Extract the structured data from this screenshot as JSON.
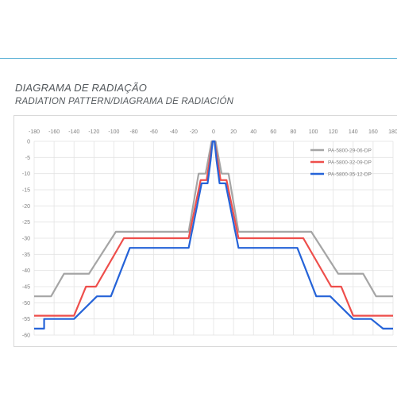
{
  "header": {
    "title": "DIAGRAMA DE RADIAÇÃO",
    "subtitle": "RADIATION PATTERN/DIAGRAMA DE RADIACIÓN"
  },
  "chart_data": {
    "type": "line",
    "title": "DIAGRAMA DE RADIAÇÃO",
    "xlabel": "",
    "ylabel": "",
    "xlim": [
      -180,
      180
    ],
    "ylim": [
      -60,
      0
    ],
    "xticks": [
      -180,
      -160,
      -140,
      -120,
      -100,
      -80,
      -60,
      -40,
      -20,
      0,
      20,
      40,
      60,
      80,
      100,
      120,
      140,
      160,
      180
    ],
    "yticks": [
      0,
      -5,
      -10,
      -15,
      -20,
      -25,
      -30,
      -35,
      -40,
      -45,
      -50,
      -55,
      -60
    ],
    "grid": true,
    "legend_position": "top-right",
    "series": [
      {
        "name": "PA-5800-29-06-DP",
        "color": "#a5a5a5",
        "points": [
          [
            -180,
            -48
          ],
          [
            -163,
            -48
          ],
          [
            -150,
            -41
          ],
          [
            -130,
            -41
          ],
          [
            -125,
            -41
          ],
          [
            -98,
            -28
          ],
          [
            -80,
            -28
          ],
          [
            -25,
            -28
          ],
          [
            -15,
            -10
          ],
          [
            -8,
            -10
          ],
          [
            -5,
            -5
          ],
          [
            -2,
            0
          ],
          [
            0,
            0
          ],
          [
            2,
            0
          ],
          [
            5,
            -5
          ],
          [
            8,
            -10
          ],
          [
            15,
            -10
          ],
          [
            25,
            -28
          ],
          [
            80,
            -28
          ],
          [
            98,
            -28
          ],
          [
            125,
            -41
          ],
          [
            130,
            -41
          ],
          [
            150,
            -41
          ],
          [
            163,
            -48
          ],
          [
            180,
            -48
          ]
        ]
      },
      {
        "name": "PA-5800-32-09-DP",
        "color": "#ee4e4b",
        "points": [
          [
            -180,
            -54
          ],
          [
            -140,
            -54
          ],
          [
            -128,
            -45
          ],
          [
            -118,
            -45
          ],
          [
            -90,
            -30
          ],
          [
            -60,
            -30
          ],
          [
            -25,
            -30
          ],
          [
            -13,
            -12
          ],
          [
            -7,
            -12
          ],
          [
            -4,
            -6
          ],
          [
            -1,
            0
          ],
          [
            0,
            0
          ],
          [
            1,
            0
          ],
          [
            4,
            -6
          ],
          [
            7,
            -12
          ],
          [
            13,
            -12
          ],
          [
            25,
            -30
          ],
          [
            60,
            -30
          ],
          [
            90,
            -30
          ],
          [
            118,
            -45
          ],
          [
            128,
            -45
          ],
          [
            140,
            -54
          ],
          [
            180,
            -54
          ]
        ]
      },
      {
        "name": "PA-5800-35-12-DP",
        "color": "#2563d8",
        "points": [
          [
            -180,
            -58
          ],
          [
            -170,
            -58
          ],
          [
            -170,
            -55
          ],
          [
            -158,
            -55
          ],
          [
            -140,
            -55
          ],
          [
            -117,
            -48
          ],
          [
            -103,
            -48
          ],
          [
            -84,
            -33
          ],
          [
            -65,
            -33
          ],
          [
            -25,
            -33
          ],
          [
            -12,
            -13
          ],
          [
            -6,
            -13
          ],
          [
            -3,
            -6
          ],
          [
            -1,
            0
          ],
          [
            0,
            0
          ],
          [
            1,
            0
          ],
          [
            3,
            -6
          ],
          [
            6,
            -13
          ],
          [
            12,
            -13
          ],
          [
            25,
            -33
          ],
          [
            65,
            -33
          ],
          [
            84,
            -33
          ],
          [
            103,
            -48
          ],
          [
            117,
            -48
          ],
          [
            140,
            -55
          ],
          [
            158,
            -55
          ],
          [
            170,
            -58
          ],
          [
            180,
            -58
          ]
        ]
      }
    ]
  }
}
